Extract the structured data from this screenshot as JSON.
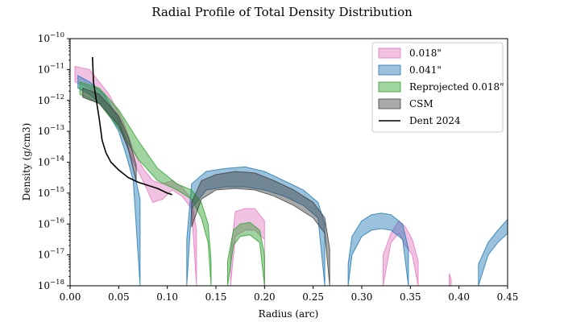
{
  "chart_data": {
    "type": "area",
    "title": "Radial Profile of Total Density Distribution",
    "xlabel": "Radius (arc)",
    "ylabel": "Density (g/cm3)",
    "xlim": [
      0.0,
      0.45
    ],
    "ylim_log10": [
      -18,
      -10
    ],
    "y_scale": "log",
    "x_ticks": [
      0.0,
      0.05,
      0.1,
      0.15,
      0.2,
      0.25,
      0.3,
      0.35,
      0.4,
      0.45
    ],
    "x_tick_labels": [
      "0.00",
      "0.05",
      "0.10",
      "0.15",
      "0.20",
      "0.25",
      "0.30",
      "0.35",
      "0.40",
      "0.45"
    ],
    "y_ticks_log10": [
      -18,
      -17,
      -16,
      -15,
      -14,
      -13,
      -12,
      -11,
      -10
    ],
    "y_tick_labels": [
      {
        "base": "10",
        "exp": "−18"
      },
      {
        "base": "10",
        "exp": "−17"
      },
      {
        "base": "10",
        "exp": "−16"
      },
      {
        "base": "10",
        "exp": "−15"
      },
      {
        "base": "10",
        "exp": "−14"
      },
      {
        "base": "10",
        "exp": "−13"
      },
      {
        "base": "10",
        "exp": "−12"
      },
      {
        "base": "10",
        "exp": "−11"
      },
      {
        "base": "10",
        "exp": "−10"
      }
    ],
    "grid": false,
    "legend_position": "top-right",
    "series": [
      {
        "name": "0.018\"",
        "kind": "band",
        "color": "#e377c2",
        "segments": [
          {
            "x": [
              0.005,
              0.02,
              0.04,
              0.055,
              0.065,
              0.075,
              0.085,
              0.095,
              0.105,
              0.115,
              0.125,
              0.13
            ],
            "lo": [
              -11.4,
              -11.6,
              -12.3,
              -13.2,
              -14.0,
              -14.6,
              -15.3,
              -15.2,
              -14.9,
              -15.1,
              -15.5,
              -18
            ],
            "hi": [
              -10.9,
              -11.0,
              -11.8,
              -12.7,
              -13.6,
              -14.2,
              -14.6,
              -14.7,
              -14.6,
              -14.8,
              -15.2,
              -16.2
            ]
          },
          {
            "x": [
              0.165,
              0.17,
              0.18,
              0.19,
              0.2,
              0.2
            ],
            "lo": [
              -18,
              -16.4,
              -16.2,
              -16.2,
              -16.5,
              -18
            ],
            "hi": [
              -17.0,
              -15.6,
              -15.5,
              -15.5,
              -15.9,
              -17.0
            ]
          },
          {
            "x": [
              0.322,
              0.33,
              0.338,
              0.345,
              0.352,
              0.358
            ],
            "lo": [
              -18,
              -16.6,
              -16.3,
              -16.7,
              -17.0,
              -18
            ],
            "hi": [
              -17.0,
              -16.3,
              -15.9,
              -16.1,
              -16.5,
              -17.2
            ]
          },
          {
            "x": [
              0.39,
              0.392
            ],
            "lo": [
              -18,
              -18
            ],
            "hi": [
              -17.6,
              -17.8
            ]
          }
        ]
      },
      {
        "name": "0.041\"",
        "kind": "band",
        "color": "#1f77b4",
        "segments": [
          {
            "x": [
              0.008,
              0.02,
              0.035,
              0.05,
              0.058,
              0.065,
              0.072
            ],
            "lo": [
              -11.6,
              -11.8,
              -12.2,
              -13.0,
              -13.8,
              -14.6,
              -18
            ],
            "hi": [
              -11.2,
              -11.4,
              -11.8,
              -12.6,
              -13.3,
              -14.2,
              -15.2
            ]
          },
          {
            "x": [
              0.12,
              0.125,
              0.14,
              0.16,
              0.18,
              0.2,
              0.22,
              0.24,
              0.255,
              0.262
            ],
            "lo": [
              -18,
              -15.5,
              -14.9,
              -14.8,
              -14.8,
              -14.9,
              -15.1,
              -15.4,
              -15.8,
              -18
            ],
            "hi": [
              -16.5,
              -14.7,
              -14.3,
              -14.2,
              -14.15,
              -14.3,
              -14.6,
              -14.9,
              -15.3,
              -16.0
            ]
          },
          {
            "x": [
              0.286,
              0.29,
              0.3,
              0.31,
              0.32,
              0.33,
              0.342,
              0.348
            ],
            "lo": [
              -18,
              -17.0,
              -16.4,
              -16.2,
              -16.15,
              -16.2,
              -16.5,
              -18
            ],
            "hi": [
              -17.3,
              -16.4,
              -15.9,
              -15.7,
              -15.65,
              -15.7,
              -16.0,
              -16.8
            ]
          },
          {
            "x": [
              0.42,
              0.43,
              0.44,
              0.45
            ],
            "lo": [
              -18,
              -17.0,
              -16.6,
              -16.3
            ],
            "hi": [
              -17.3,
              -16.6,
              -16.2,
              -15.85
            ]
          }
        ]
      },
      {
        "name": "Reprojected 0.018\"",
        "kind": "band",
        "color": "#2ca02c",
        "segments": [
          {
            "x": [
              0.01,
              0.03,
              0.05,
              0.07,
              0.09,
              0.11,
              0.125,
              0.135,
              0.142,
              0.145
            ],
            "lo": [
              -11.8,
              -12.1,
              -12.9,
              -13.9,
              -14.6,
              -14.9,
              -15.2,
              -15.8,
              -16.6,
              -18
            ],
            "hi": [
              -11.4,
              -11.6,
              -12.3,
              -13.3,
              -14.2,
              -14.7,
              -14.9,
              -15.3,
              -16.0,
              -17.2
            ]
          },
          {
            "x": [
              0.162,
              0.168,
              0.175,
              0.185,
              0.195,
              0.2
            ],
            "lo": [
              -18,
              -16.7,
              -16.4,
              -16.35,
              -16.6,
              -18
            ],
            "hi": [
              -17.2,
              -16.2,
              -16.0,
              -15.95,
              -16.2,
              -17.0
            ]
          }
        ]
      },
      {
        "name": "CSM",
        "kind": "band",
        "color": "#404040",
        "segments": [
          {
            "x": [
              0.013,
              0.03,
              0.05,
              0.06,
              0.068
            ],
            "lo": [
              -11.9,
              -12.1,
              -12.8,
              -13.6,
              -14.6
            ],
            "hi": [
              -11.6,
              -11.8,
              -12.5,
              -13.2,
              -14.1
            ]
          },
          {
            "x": [
              0.125,
              0.135,
              0.15,
              0.17,
              0.19,
              0.21,
              0.23,
              0.25,
              0.262,
              0.267
            ],
            "lo": [
              -16.1,
              -15.2,
              -14.9,
              -14.85,
              -14.9,
              -15.1,
              -15.4,
              -15.8,
              -16.3,
              -18
            ],
            "hi": [
              -15.3,
              -14.6,
              -14.4,
              -14.3,
              -14.35,
              -14.6,
              -14.9,
              -15.3,
              -15.8,
              -16.8
            ]
          }
        ]
      },
      {
        "name": "Dent 2024",
        "kind": "line",
        "color": "#000000",
        "x": [
          0.023,
          0.024,
          0.027,
          0.03,
          0.033,
          0.037,
          0.042,
          0.05,
          0.06,
          0.07,
          0.08,
          0.09,
          0.1,
          0.105
        ],
        "y": [
          -10.6,
          -11.4,
          -12.0,
          -12.6,
          -13.3,
          -13.7,
          -14.0,
          -14.25,
          -14.5,
          -14.65,
          -14.75,
          -14.85,
          -15.0,
          -15.05
        ]
      }
    ]
  }
}
